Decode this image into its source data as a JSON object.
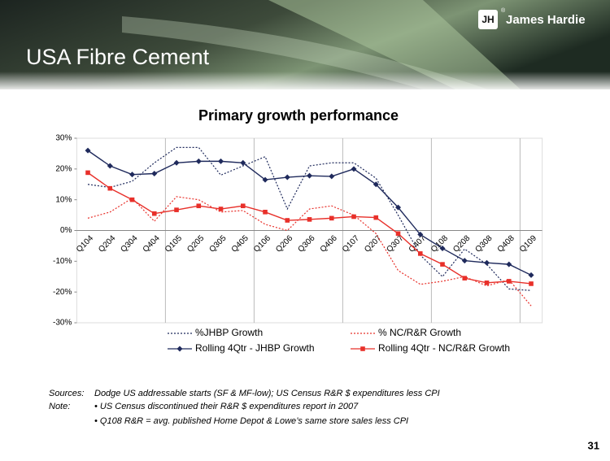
{
  "header": {
    "logo": "James Hardie",
    "logo_mark": "®",
    "title": "USA Fibre Cement"
  },
  "chart_data": {
    "type": "line",
    "title": "Primary growth performance",
    "categories": [
      "Q104",
      "Q204",
      "Q304",
      "Q404",
      "Q105",
      "Q205",
      "Q305",
      "Q405",
      "Q106",
      "Q206",
      "Q306",
      "Q406",
      "Q107",
      "Q207",
      "Q307",
      "Q407",
      "Q108",
      "Q208",
      "Q308",
      "Q408",
      "Q109"
    ],
    "ylim": [
      -30,
      30
    ],
    "yticks": [
      {
        "value": 30,
        "label": "30%"
      },
      {
        "value": 20,
        "label": "20%"
      },
      {
        "value": 10,
        "label": "10%"
      },
      {
        "value": 0,
        "label": "0%"
      },
      {
        "value": -10,
        "label": "-10%"
      },
      {
        "value": -20,
        "label": "-20%"
      },
      {
        "value": -30,
        "label": "-30%"
      }
    ],
    "series": [
      {
        "name": "%JHBP Growth",
        "color": "#1f2a5c",
        "dashed": true,
        "marker": null,
        "values": [
          15,
          14,
          16,
          22,
          27,
          27,
          18,
          21,
          24,
          7,
          21,
          22,
          22,
          17,
          5,
          -8,
          -15,
          -6,
          -11,
          -19,
          -19.5
        ]
      },
      {
        "name": "% NC/R&R Growth",
        "color": "#e8302a",
        "dashed": true,
        "marker": null,
        "values": [
          4,
          6,
          10.5,
          3,
          11,
          10,
          6,
          6.5,
          2,
          0,
          7,
          8,
          5,
          -1,
          -13,
          -17.5,
          -16.5,
          -15,
          -18,
          -16,
          -24.5
        ]
      },
      {
        "name": "Rolling 4Qtr - JHBP Growth",
        "color": "#1f2a5c",
        "dashed": false,
        "marker": "diamond",
        "values": [
          26,
          21,
          18.2,
          18.5,
          22,
          22.5,
          22.5,
          22,
          16.5,
          17.3,
          17.8,
          17.6,
          20,
          15,
          7.5,
          -1.3,
          -5.8,
          -9.8,
          -10.5,
          -11,
          -14.5
        ]
      },
      {
        "name": "Rolling 4Qtr - NC/R&R Growth",
        "color": "#e8302a",
        "dashed": false,
        "marker": "square",
        "values": [
          18.8,
          13.7,
          10,
          5.5,
          6.7,
          8,
          7,
          8,
          6,
          3.3,
          3.6,
          4,
          4.5,
          4.2,
          -1,
          -7.5,
          -11,
          -15.5,
          -17,
          -16.5,
          -17.3
        ]
      }
    ]
  },
  "notes": {
    "sources_label": "Sources:",
    "sources": "Dodge US addressable starts (SF & MF-low); US Census R&R $ expenditures less CPI",
    "note_label": "Note:",
    "items": [
      "• US Census discontinued their R&R $ expenditures report in 2007",
      "• Q108 R&R = avg. published Home Depot & Lowe’s same store sales less CPI"
    ]
  },
  "page_number": "31"
}
